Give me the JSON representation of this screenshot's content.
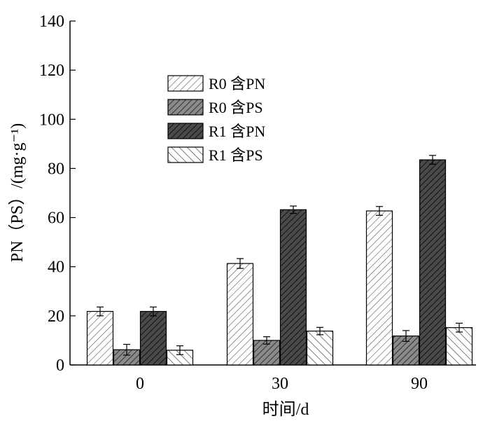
{
  "chart_data": {
    "type": "bar",
    "xlabel": "时间/d",
    "ylabel": "PN（PS）/(mg·g⁻¹)",
    "ylim": [
      0,
      140
    ],
    "yticks": [
      0,
      20,
      40,
      60,
      80,
      100,
      120,
      140
    ],
    "categories": [
      "0",
      "30",
      "90"
    ],
    "legend_position": "upper-left inside plot",
    "grid": false,
    "error_bars": true,
    "series": [
      {
        "name": "R0 含PN",
        "pattern": "light-diagonal-right",
        "color": "#f2f2f2",
        "values": [
          21.8,
          41.3,
          62.7
        ],
        "errors": [
          1.8,
          2.0,
          1.8
        ]
      },
      {
        "name": "R0 含PS",
        "pattern": "dark-diagonal-right",
        "color": "#7a7a7a",
        "values": [
          6.2,
          10.0,
          11.8
        ],
        "errors": [
          2.2,
          1.5,
          2.2
        ]
      },
      {
        "name": "R1 含PN",
        "pattern": "dark-diagonal-right",
        "color": "#3a3a3a",
        "values": [
          21.8,
          63.2,
          83.5
        ],
        "errors": [
          1.8,
          1.5,
          1.8
        ]
      },
      {
        "name": "R1 含PS",
        "pattern": "light-diagonal-left",
        "color": "#f5f5f5",
        "values": [
          6.0,
          13.8,
          15.2
        ],
        "errors": [
          1.8,
          1.5,
          1.8
        ]
      }
    ]
  }
}
